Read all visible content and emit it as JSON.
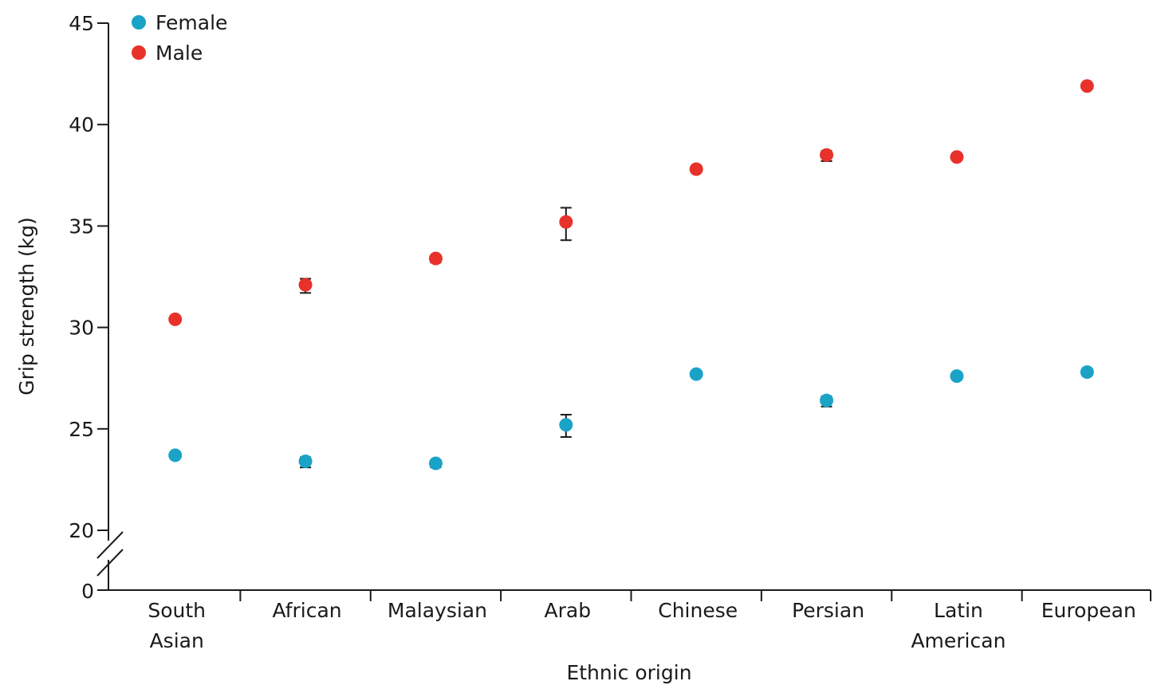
{
  "chart_data": {
    "type": "scatter",
    "xlabel": "Ethnic origin",
    "ylabel": "Grip strength (kg)",
    "categories": [
      [
        "South",
        "Asian"
      ],
      [
        "African"
      ],
      [
        "Malaysian"
      ],
      [
        "Arab"
      ],
      [
        "Chinese"
      ],
      [
        "Persian"
      ],
      [
        "Latin",
        "American"
      ],
      [
        "European"
      ]
    ],
    "y_ticks": [
      20,
      25,
      30,
      35,
      40,
      45
    ],
    "y_tick_labels": [
      "20",
      "25",
      "30",
      "35",
      "40",
      "45"
    ],
    "y_zero_label": "0",
    "ylim": [
      20,
      45
    ],
    "axis_break": true,
    "grid": false,
    "legend_position": "top-left",
    "series": [
      {
        "name": "Female",
        "color": "#1aa3c7",
        "values": [
          23.7,
          23.4,
          23.3,
          25.2,
          27.7,
          26.4,
          27.6,
          27.8
        ],
        "error_low": [
          23.6,
          23.1,
          23.1,
          24.6,
          27.7,
          26.1,
          27.6,
          27.7
        ],
        "error_high": [
          23.8,
          23.6,
          23.4,
          25.7,
          27.7,
          26.6,
          27.6,
          27.9
        ]
      },
      {
        "name": "Male",
        "color": "#e8312a",
        "values": [
          30.4,
          32.1,
          33.4,
          35.2,
          37.8,
          38.5,
          38.4,
          41.9
        ],
        "error_low": [
          30.3,
          31.7,
          33.2,
          34.3,
          37.8,
          38.2,
          38.4,
          41.8
        ],
        "error_high": [
          30.5,
          32.4,
          33.5,
          35.9,
          37.8,
          38.7,
          38.4,
          42.0
        ]
      }
    ]
  }
}
